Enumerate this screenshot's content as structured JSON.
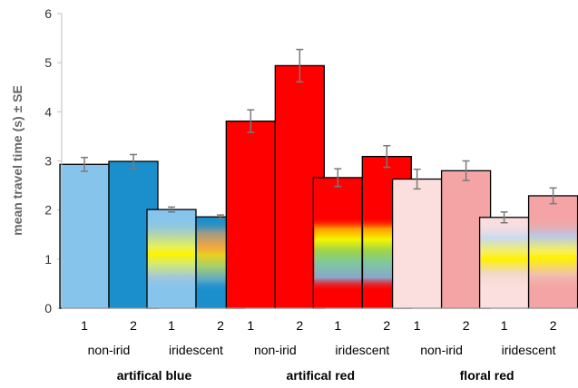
{
  "chart_data": {
    "type": "bar",
    "ylabel": "mean travel time (s) ± SE",
    "ylim": [
      0,
      6
    ],
    "yticks": [
      0,
      1,
      2,
      3,
      4,
      5,
      6
    ],
    "grid": false,
    "groups": [
      {
        "label": "artifical blue",
        "subgroups": [
          {
            "label": "non-irid",
            "bars": [
              {
                "label": "1",
                "value": 2.93,
                "se": 0.14,
                "color": "#86c4eb",
                "iridescent": false
              },
              {
                "label": "2",
                "value": 2.99,
                "se": 0.14,
                "color": "#1b8fcc",
                "iridescent": false
              }
            ]
          },
          {
            "label": "iridescent",
            "bars": [
              {
                "label": "1",
                "value": 2.01,
                "se": 0.05,
                "color": "#86c4eb",
                "iridescent": true
              },
              {
                "label": "2",
                "value": 1.86,
                "se": 0.04,
                "color": "#1b8fcc",
                "iridescent": true
              }
            ]
          }
        ]
      },
      {
        "label": "artifical red",
        "subgroups": [
          {
            "label": "non-irid",
            "bars": [
              {
                "label": "1",
                "value": 3.81,
                "se": 0.23,
                "color": "#ff0000",
                "iridescent": false
              },
              {
                "label": "2",
                "value": 4.94,
                "se": 0.33,
                "color": "#ff0000",
                "iridescent": false
              }
            ]
          },
          {
            "label": "iridescent",
            "bars": [
              {
                "label": "1",
                "value": 2.66,
                "se": 0.18,
                "color": "#ff0000",
                "iridescent": true
              },
              {
                "label": "2",
                "value": 3.09,
                "se": 0.22,
                "color": "#ff0000",
                "iridescent": true
              }
            ]
          }
        ]
      },
      {
        "label": "floral red",
        "subgroups": [
          {
            "label": "non-irid",
            "bars": [
              {
                "label": "1",
                "value": 2.63,
                "se": 0.2,
                "color": "#fbdede",
                "iridescent": false
              },
              {
                "label": "2",
                "value": 2.8,
                "se": 0.2,
                "color": "#f4a4a4",
                "iridescent": false
              }
            ]
          },
          {
            "label": "iridescent",
            "bars": [
              {
                "label": "1",
                "value": 1.85,
                "se": 0.11,
                "color": "#fbdede",
                "iridescent": true
              },
              {
                "label": "2",
                "value": 2.29,
                "se": 0.16,
                "color": "#f4a4a4",
                "iridescent": true
              }
            ]
          }
        ]
      }
    ]
  }
}
